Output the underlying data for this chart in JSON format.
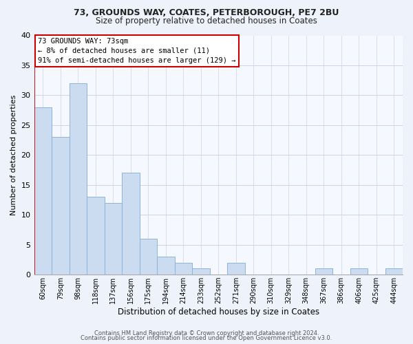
{
  "title1": "73, GROUNDS WAY, COATES, PETERBOROUGH, PE7 2BU",
  "title2": "Size of property relative to detached houses in Coates",
  "xlabel": "Distribution of detached houses by size in Coates",
  "ylabel": "Number of detached properties",
  "categories": [
    "60sqm",
    "79sqm",
    "98sqm",
    "118sqm",
    "137sqm",
    "156sqm",
    "175sqm",
    "194sqm",
    "214sqm",
    "233sqm",
    "252sqm",
    "271sqm",
    "290sqm",
    "310sqm",
    "329sqm",
    "348sqm",
    "367sqm",
    "386sqm",
    "406sqm",
    "425sqm",
    "444sqm"
  ],
  "values": [
    28,
    23,
    32,
    13,
    12,
    17,
    6,
    3,
    2,
    1,
    0,
    2,
    0,
    0,
    0,
    0,
    1,
    0,
    1,
    0,
    1
  ],
  "bar_color": "#ccdcf0",
  "bar_edge_color": "#8ab4d8",
  "ylim": [
    0,
    40
  ],
  "yticks": [
    0,
    5,
    10,
    15,
    20,
    25,
    30,
    35,
    40
  ],
  "vline_color": "#cc0000",
  "annotation_box_text": "73 GROUNDS WAY: 73sqm\n← 8% of detached houses are smaller (11)\n91% of semi-detached houses are larger (129) →",
  "footer1": "Contains HM Land Registry data © Crown copyright and database right 2024.",
  "footer2": "Contains public sector information licensed under the Open Government Licence v3.0.",
  "background_color": "#eef2fa",
  "plot_background_color": "#f5f8ff",
  "grid_color": "#c8d4e8"
}
